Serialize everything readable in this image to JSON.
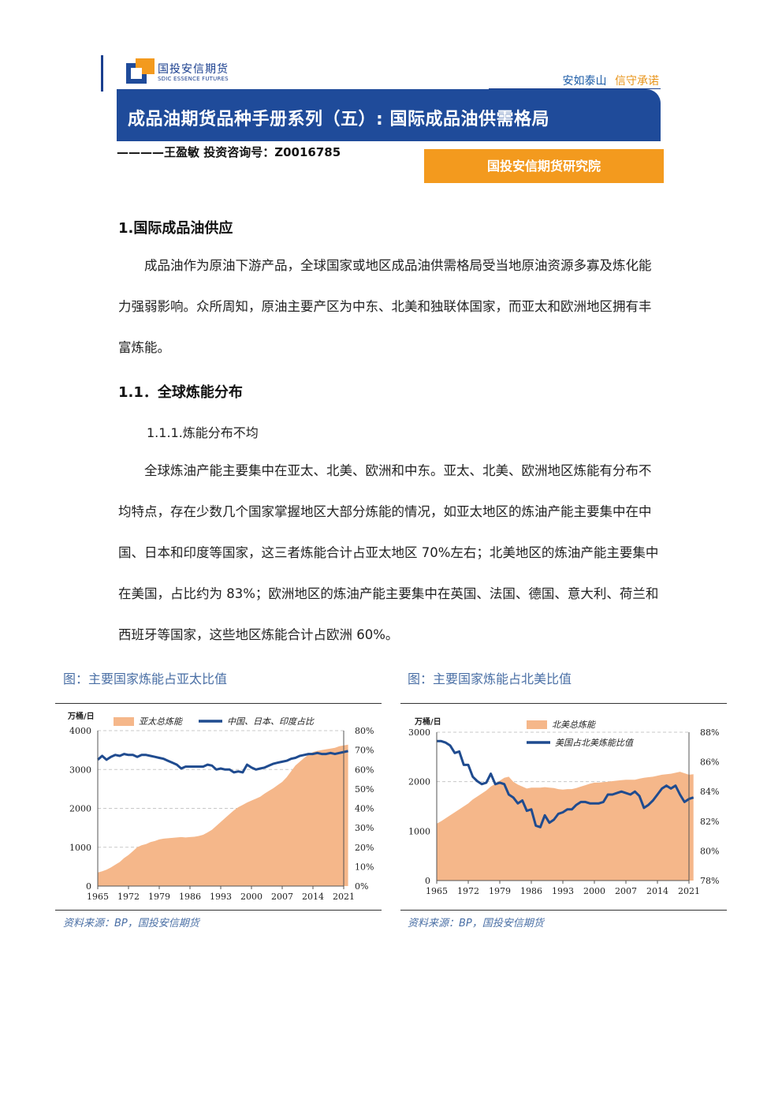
{
  "header": {
    "logo_cn": "国投安信期货",
    "logo_en": "SDIC ESSENCE FUTURES",
    "slogan_a": "安如泰山",
    "slogan_b": "信守承诺"
  },
  "banner": {
    "title": "成品油期货品种手册系列（五）: 国际成品油供需格局",
    "author": "————王盈敏  投资咨询号：Z0016785",
    "institute": "国投安信期货研究院"
  },
  "section1": {
    "heading": "1.国际成品油供应",
    "para": "成品油作为原油下游产品，全球国家或地区成品油供需格局受当地原油资源多寡及炼化能力强弱影响。众所周知，原油主要产区为中东、北美和独联体国家，而亚太和欧洲地区拥有丰富炼能。"
  },
  "section11": {
    "heading": "1.1．全球炼能分布",
    "subheading": "1.1.1.炼能分布不均",
    "para": "全球炼油产能主要集中在亚太、北美、欧洲和中东。亚太、北美、欧洲地区炼能有分布不均特点，存在少数几个国家掌握地区大部分炼能的情况，如亚太地区的炼油产能主要集中在中国、日本和印度等国家，这三者炼能合计占亚太地区 70%左右；北美地区的炼油产能主要集中在美国，占比约为 83%；欧洲地区的炼油产能主要集中在英国、法国、德国、意大利、荷兰和西班牙等国家，这些地区炼能合计占欧洲 60%。"
  },
  "figures": {
    "left_caption": "图：主要国家炼能占亚太比值",
    "right_caption": "图：主要国家炼能占北美比值",
    "left_source": "资料来源：BP，国投安信期货",
    "right_source": "资料来源：BP，国投安信期货"
  },
  "chart_data": [
    {
      "type": "area",
      "y_unit": "万桶/日",
      "x_ticks": [
        "1965",
        "1972",
        "1979",
        "1986",
        "1993",
        "2000",
        "2007",
        "2014",
        "2021"
      ],
      "y_ticks": [
        "0",
        "1000",
        "2000",
        "3000",
        "4000"
      ],
      "y2_ticks": [
        "0%",
        "10%",
        "20%",
        "30%",
        "40%",
        "50%",
        "60%",
        "70%",
        "80%"
      ],
      "ylim": [
        0,
        4000
      ],
      "y2lim": [
        0,
        0.8
      ],
      "grid": true,
      "legend_position": "top",
      "series": [
        {
          "name": "亚太总炼能",
          "kind": "area",
          "axis": "left",
          "color": "#f5b78a",
          "x": [
            1965,
            1966,
            1967,
            1968,
            1969,
            1970,
            1971,
            1972,
            1973,
            1974,
            1975,
            1976,
            1977,
            1978,
            1979,
            1980,
            1981,
            1982,
            1983,
            1984,
            1985,
            1986,
            1987,
            1988,
            1989,
            1990,
            1991,
            1992,
            1993,
            1994,
            1995,
            1996,
            1997,
            1998,
            1999,
            2000,
            2001,
            2002,
            2003,
            2004,
            2005,
            2006,
            2007,
            2008,
            2009,
            2010,
            2011,
            2012,
            2013,
            2014,
            2015,
            2016,
            2017,
            2018,
            2019,
            2020,
            2021,
            2022
          ],
          "values": [
            350,
            380,
            420,
            480,
            550,
            620,
            720,
            800,
            900,
            1000,
            1050,
            1080,
            1130,
            1160,
            1200,
            1220,
            1230,
            1240,
            1250,
            1260,
            1250,
            1260,
            1270,
            1290,
            1320,
            1380,
            1450,
            1550,
            1650,
            1750,
            1850,
            1950,
            2030,
            2090,
            2150,
            2200,
            2250,
            2300,
            2380,
            2450,
            2520,
            2600,
            2680,
            2800,
            2950,
            3100,
            3200,
            3300,
            3380,
            3450,
            3480,
            3500,
            3520,
            3540,
            3560,
            3600,
            3620,
            3640
          ]
        },
        {
          "name": "中国、日本、印度占比",
          "kind": "line",
          "axis": "right",
          "color": "#1f4b8f",
          "x": [
            1965,
            1966,
            1967,
            1968,
            1969,
            1970,
            1971,
            1972,
            1973,
            1974,
            1975,
            1976,
            1977,
            1978,
            1979,
            1980,
            1981,
            1982,
            1983,
            1984,
            1985,
            1986,
            1987,
            1988,
            1989,
            1990,
            1991,
            1992,
            1993,
            1994,
            1995,
            1996,
            1997,
            1998,
            1999,
            2000,
            2001,
            2002,
            2003,
            2004,
            2005,
            2006,
            2007,
            2008,
            2009,
            2010,
            2011,
            2012,
            2013,
            2014,
            2015,
            2016,
            2017,
            2018,
            2019,
            2020,
            2021,
            2022
          ],
          "values": [
            0.65,
            0.67,
            0.65,
            0.665,
            0.675,
            0.67,
            0.68,
            0.675,
            0.675,
            0.665,
            0.675,
            0.675,
            0.67,
            0.665,
            0.66,
            0.655,
            0.645,
            0.635,
            0.625,
            0.605,
            0.615,
            0.615,
            0.615,
            0.615,
            0.615,
            0.625,
            0.62,
            0.6,
            0.605,
            0.6,
            0.6,
            0.585,
            0.59,
            0.585,
            0.625,
            0.61,
            0.6,
            0.605,
            0.61,
            0.62,
            0.63,
            0.635,
            0.64,
            0.645,
            0.655,
            0.66,
            0.67,
            0.675,
            0.68,
            0.68,
            0.685,
            0.68,
            0.68,
            0.685,
            0.68,
            0.685,
            0.69,
            0.695
          ]
        }
      ]
    },
    {
      "type": "area",
      "y_unit": "万桶/日",
      "x_ticks": [
        "1965",
        "1972",
        "1979",
        "1986",
        "1993",
        "2000",
        "2007",
        "2014",
        "2021"
      ],
      "y_ticks": [
        "0",
        "1000",
        "2000",
        "3000"
      ],
      "y2_ticks": [
        "78%",
        "80%",
        "82%",
        "84%",
        "86%",
        "88%"
      ],
      "ylim": [
        0,
        3000
      ],
      "y2lim": [
        0.78,
        0.88
      ],
      "grid": true,
      "legend_position": "top",
      "series": [
        {
          "name": "北美总炼能",
          "kind": "area",
          "axis": "left",
          "color": "#f5b78a",
          "x": [
            1965,
            1966,
            1967,
            1968,
            1969,
            1970,
            1971,
            1972,
            1973,
            1974,
            1975,
            1976,
            1977,
            1978,
            1979,
            1980,
            1981,
            1982,
            1983,
            1984,
            1985,
            1986,
            1987,
            1988,
            1989,
            1990,
            1991,
            1992,
            1993,
            1994,
            1995,
            1996,
            1997,
            1998,
            1999,
            2000,
            2001,
            2002,
            2003,
            2004,
            2005,
            2006,
            2007,
            2008,
            2009,
            2010,
            2011,
            2012,
            2013,
            2014,
            2015,
            2016,
            2017,
            2018,
            2019,
            2020,
            2021,
            2022
          ],
          "values": [
            1150,
            1200,
            1260,
            1320,
            1380,
            1440,
            1500,
            1560,
            1640,
            1700,
            1760,
            1820,
            1900,
            1960,
            2020,
            2080,
            2100,
            2000,
            1940,
            1900,
            1860,
            1880,
            1880,
            1880,
            1890,
            1880,
            1870,
            1850,
            1840,
            1850,
            1850,
            1870,
            1900,
            1930,
            1960,
            1980,
            1980,
            1990,
            2000,
            2010,
            2020,
            2030,
            2040,
            2040,
            2040,
            2060,
            2080,
            2090,
            2100,
            2120,
            2140,
            2150,
            2160,
            2180,
            2200,
            2170,
            2140,
            2150
          ]
        },
        {
          "name": "美国占北美炼能比值",
          "kind": "line",
          "axis": "right",
          "color": "#1f4b8f",
          "x": [
            1965,
            1966,
            1967,
            1968,
            1969,
            1970,
            1971,
            1972,
            1973,
            1974,
            1975,
            1976,
            1977,
            1978,
            1979,
            1980,
            1981,
            1982,
            1983,
            1984,
            1985,
            1986,
            1987,
            1988,
            1989,
            1990,
            1991,
            1992,
            1993,
            1994,
            1995,
            1996,
            1997,
            1998,
            1999,
            2000,
            2001,
            2002,
            2003,
            2004,
            2005,
            2006,
            2007,
            2008,
            2009,
            2010,
            2011,
            2012,
            2013,
            2014,
            2015,
            2016,
            2017,
            2018,
            2019,
            2020,
            2021,
            2022
          ],
          "values": [
            0.874,
            0.874,
            0.873,
            0.871,
            0.866,
            0.867,
            0.858,
            0.858,
            0.85,
            0.847,
            0.845,
            0.846,
            0.852,
            0.845,
            0.846,
            0.845,
            0.838,
            0.836,
            0.832,
            0.834,
            0.827,
            0.828,
            0.817,
            0.816,
            0.824,
            0.819,
            0.821,
            0.825,
            0.826,
            0.828,
            0.828,
            0.831,
            0.833,
            0.833,
            0.832,
            0.832,
            0.832,
            0.833,
            0.838,
            0.838,
            0.839,
            0.84,
            0.839,
            0.838,
            0.84,
            0.837,
            0.829,
            0.831,
            0.834,
            0.838,
            0.842,
            0.844,
            0.842,
            0.844,
            0.838,
            0.833,
            0.835,
            0.836
          ]
        }
      ]
    }
  ]
}
